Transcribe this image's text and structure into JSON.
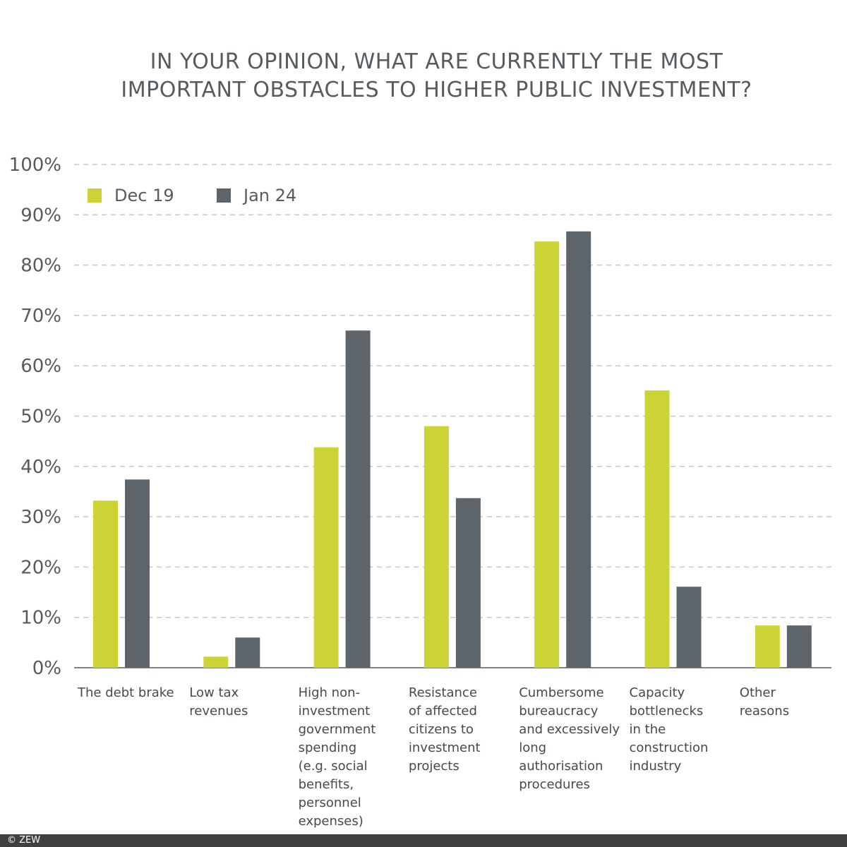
{
  "chart_data": {
    "type": "bar",
    "title": "IN YOUR OPINION, WHAT ARE CURRENTLY THE MOST IMPORTANT OBSTACLES TO HIGHER PUBLIC INVESTMENT?",
    "title_lines": [
      "IN YOUR OPINION, WHAT ARE CURRENTLY THE MOST",
      "IMPORTANT OBSTACLES TO HIGHER PUBLIC INVESTMENT?"
    ],
    "categories": [
      [
        "The debt brake"
      ],
      [
        "Low tax",
        "revenues"
      ],
      [
        "High non-",
        "investment",
        "government",
        "spending",
        "(e.g. social",
        "benefits,",
        "personnel",
        "expenses)"
      ],
      [
        "Resistance",
        "of affected",
        "citizens to",
        "investment",
        "projects"
      ],
      [
        "Cumbersome",
        "bureaucracy",
        "and excessively",
        "long",
        "authorisation",
        "procedures"
      ],
      [
        "Capacity",
        "bottlenecks",
        "in the",
        "construction",
        "industry"
      ],
      [
        "Other",
        "reasons"
      ]
    ],
    "series": [
      {
        "name": "Dec 19",
        "color": "#cbd335",
        "values": [
          33.2,
          2.2,
          43.8,
          48.0,
          84.7,
          55.1,
          8.4
        ]
      },
      {
        "name": "Jan 24",
        "color": "#5d656b",
        "values": [
          37.4,
          6.0,
          67.0,
          33.7,
          86.7,
          16.1,
          8.4
        ]
      }
    ],
    "ylim": [
      0,
      100
    ],
    "yticks": [
      "0%",
      "10%",
      "20%",
      "30%",
      "40%",
      "50%",
      "60%",
      "70%",
      "80%",
      "90%",
      "100%"
    ],
    "grid": true,
    "legend_position": "top-left"
  },
  "footer": "© ZEW"
}
